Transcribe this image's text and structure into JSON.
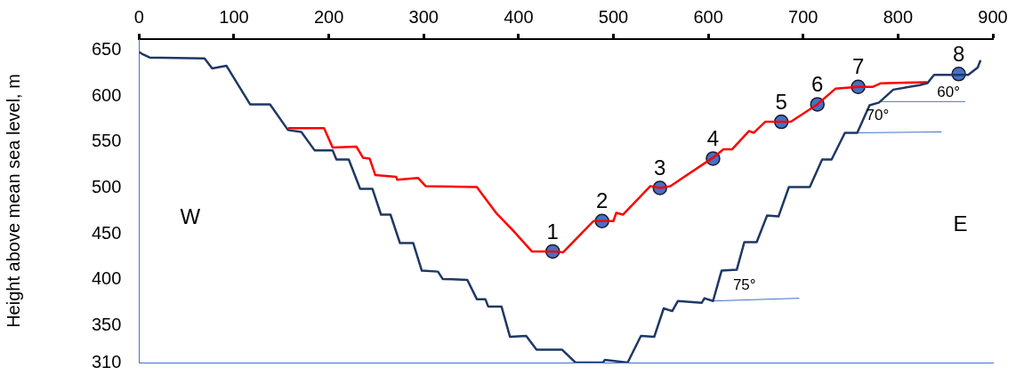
{
  "chart_data": {
    "type": "line",
    "ylabel": "Height above mean sea level, m",
    "xlim": [
      0,
      900
    ],
    "xticks": [
      0,
      100,
      200,
      300,
      400,
      500,
      600,
      700,
      800,
      900
    ],
    "ylim": [
      310,
      662
    ],
    "yticks": [
      310,
      350,
      400,
      450,
      500,
      550,
      600,
      650
    ],
    "legend": false,
    "series": [
      {
        "color": "#1f3864",
        "marker": "none",
        "x": [
          0,
          3,
          11,
          69,
          77,
          92,
          117,
          138,
          157,
          171,
          185,
          204,
          208,
          221,
          233,
          246,
          255,
          265,
          275,
          289,
          298,
          315,
          320,
          346,
          356,
          365,
          368,
          382,
          391,
          408,
          419,
          446,
          460,
          489,
          491,
          515,
          529,
          543,
          553,
          562,
          568,
          593,
          596,
          605,
          614,
          630,
          638,
          651,
          662,
          674,
          685,
          707,
          720,
          730,
          744,
          757,
          770,
          780,
          795,
          823,
          831,
          838,
          874,
          884,
          887
        ],
        "values": [
          648,
          646,
          642,
          641,
          630,
          633,
          591,
          591,
          563,
          561,
          541,
          541,
          531,
          531,
          499,
          499,
          471,
          471,
          440,
          440,
          410,
          409,
          401,
          400,
          379,
          379,
          371,
          371,
          338,
          339,
          324,
          324,
          310,
          310,
          313,
          310,
          339,
          338,
          369,
          366,
          377,
          375,
          380,
          377,
          410,
          411,
          441,
          441,
          470,
          469,
          501,
          501,
          531,
          531,
          560,
          560,
          590,
          593,
          607,
          612,
          614,
          623,
          623,
          631,
          639
        ]
      },
      {
        "color": "#ff0000",
        "marker": "none",
        "x": [
          157,
          195,
          204,
          229,
          236,
          243,
          249,
          271,
          272,
          294,
          302,
          356,
          377,
          394,
          414,
          436,
          447,
          479,
          488,
          500,
          503,
          510,
          539,
          549,
          560,
          605,
          616,
          625,
          643,
          648,
          660,
          677,
          687,
          715,
          734,
          758,
          773,
          782,
          831
        ],
        "values": [
          565,
          565,
          544,
          545,
          533,
          532,
          514,
          512,
          509,
          511,
          502,
          501,
          472,
          454,
          431,
          431,
          430,
          464,
          464,
          464,
          473,
          471,
          502,
          500,
          502,
          533,
          542,
          542,
          562,
          560,
          572,
          572,
          572,
          591,
          608,
          610,
          610,
          614,
          615
        ]
      },
      {
        "color": "#4472c4",
        "marker": "none",
        "x": [
          605,
          696
        ],
        "values": [
          377,
          380
        ]
      },
      {
        "color": "#4472c4",
        "marker": "none",
        "x": [
          757,
          846
        ],
        "values": [
          560,
          561
        ]
      },
      {
        "color": "#4472c4",
        "marker": "none",
        "x": [
          781,
          871
        ],
        "values": [
          594,
          594
        ]
      },
      {
        "type": "scatter",
        "color": "#4472c4",
        "marker": "circle",
        "x": [
          436,
          488,
          549,
          605,
          677,
          715,
          758,
          864
        ],
        "values": [
          431,
          464,
          500,
          532,
          572,
          591,
          610,
          624
        ]
      }
    ],
    "annotations": [
      "W",
      "E",
      "75°",
      "70°",
      "60°",
      {
        "text": "1",
        "x": 436,
        "y": 431
      },
      {
        "text": "2",
        "x": 488,
        "y": 464
      },
      {
        "text": "3",
        "x": 549,
        "y": 500
      },
      {
        "text": "4",
        "x": 605,
        "y": 532
      },
      {
        "text": "5",
        "x": 677,
        "y": 572
      },
      {
        "text": "6",
        "x": 715,
        "y": 591
      },
      {
        "text": "7",
        "x": 758,
        "y": 610
      },
      {
        "text": "8",
        "x": 864,
        "y": 624
      }
    ]
  }
}
